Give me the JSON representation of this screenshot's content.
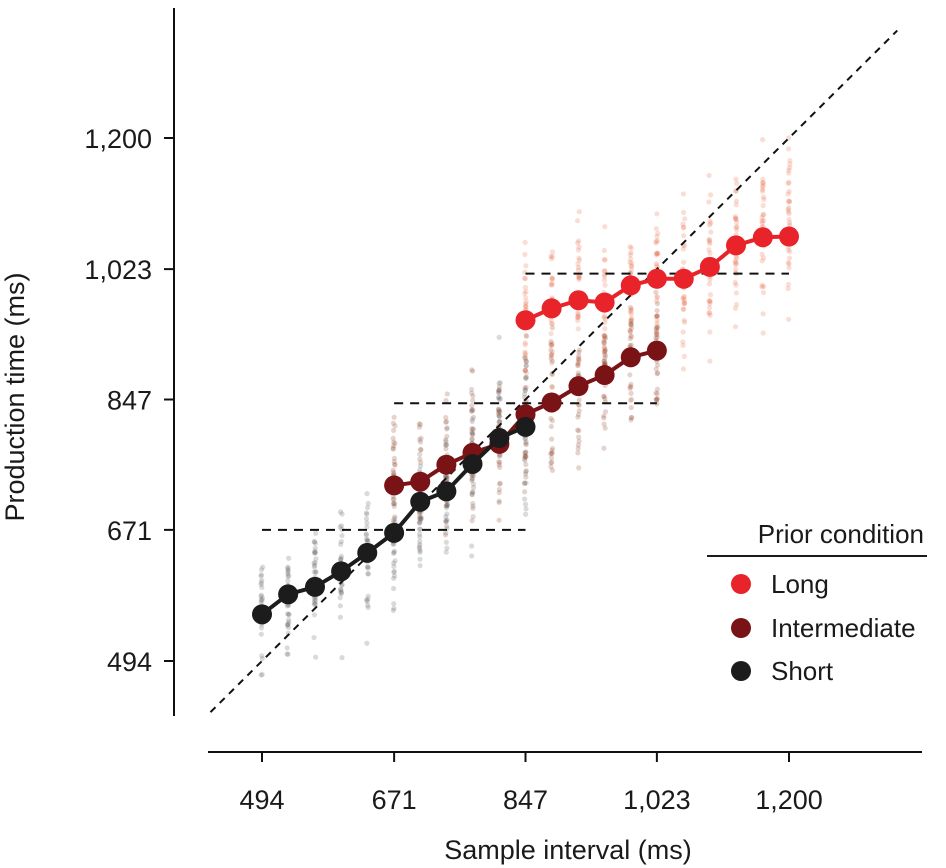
{
  "chart_data": {
    "type": "scatter",
    "title": "",
    "xlabel": "Sample interval (ms)",
    "ylabel": "Production time (ms)",
    "xlim": [
      425,
      1345
    ],
    "ylim": [
      400,
      1375
    ],
    "x_ticks": [
      494,
      671,
      847,
      1023,
      1200
    ],
    "x_tick_labels": [
      "494",
      "671",
      "847",
      "1,023",
      "1,200"
    ],
    "y_ticks": [
      494,
      671,
      847,
      1023,
      1200
    ],
    "y_tick_labels": [
      "494",
      "671",
      "847",
      "1,023",
      "1,200"
    ],
    "unity_line": true,
    "legend": {
      "title": "Prior condition",
      "placement": "bottom-right",
      "entries": [
        "Long",
        "Intermediate",
        "Short"
      ]
    },
    "series": [
      {
        "name": "Long",
        "color": "#e8232a",
        "trial_color": "#e8633f",
        "prior_range": [
          847,
          1200
        ],
        "prior_mean_line": 1017,
        "x": [
          847,
          882,
          918,
          953,
          988,
          1023,
          1059,
          1094,
          1129,
          1165,
          1200
        ],
        "y": [
          954,
          970,
          981,
          978,
          1001,
          1010,
          1010,
          1026,
          1055,
          1066,
          1067
        ]
      },
      {
        "name": "Intermediate",
        "color": "#7a1316",
        "trial_color": "#8a3a22",
        "prior_range": [
          671,
          1023
        ],
        "prior_mean_line": 842,
        "x": [
          671,
          706,
          741,
          776,
          812,
          847,
          882,
          918,
          953,
          988,
          1023
        ],
        "y": [
          731,
          736,
          759,
          775,
          787,
          827,
          843,
          865,
          880,
          904,
          913
        ]
      },
      {
        "name": "Short",
        "color": "#1c1c1c",
        "trial_color": "#555555",
        "prior_range": [
          494,
          847
        ],
        "prior_mean_line": 671,
        "x": [
          494,
          529,
          565,
          600,
          635,
          671,
          706,
          741,
          776,
          812,
          847
        ],
        "y": [
          557,
          584,
          594,
          615,
          640,
          667,
          709,
          723,
          760,
          795,
          810
        ]
      }
    ]
  }
}
